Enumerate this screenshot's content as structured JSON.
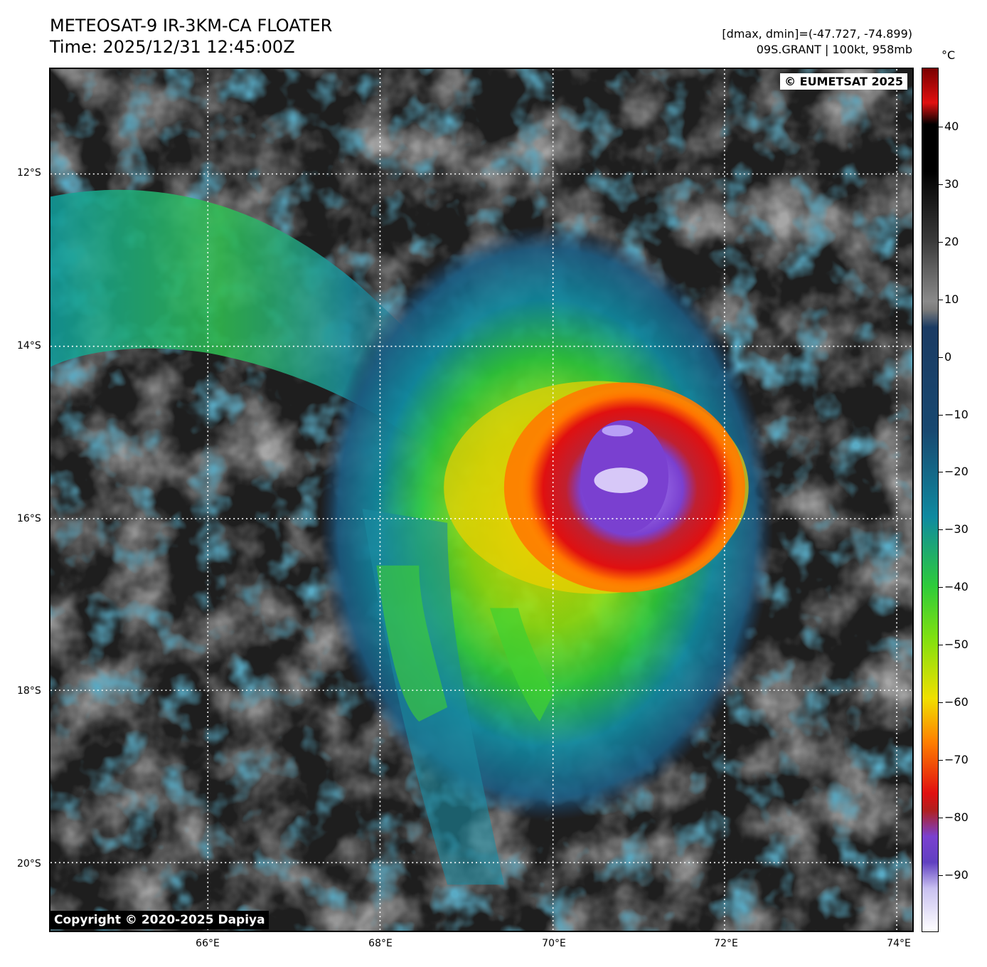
{
  "header": {
    "title_line1": "METEOSAT-9 IR-3KM-CA FLOATER",
    "title_line2": "Time: 2025/12/31 12:45:00Z",
    "range_info": "[dmax, dmin]=(-47.727, -74.899)",
    "storm_info": "09S.GRANT | 100kt, 958mb"
  },
  "credits": {
    "eumetsat": "© EUMETSAT 2025",
    "dapiya": "Copyright © 2020-2025 Dapiya"
  },
  "axes": {
    "lat_labels": [
      "12°S",
      "14°S",
      "16°S",
      "18°S",
      "20°S"
    ],
    "lon_labels": [
      "66°E",
      "68°E",
      "70°E",
      "72°E",
      "74°E"
    ]
  },
  "colorbar": {
    "unit": "°C",
    "ticks": [
      "40",
      "30",
      "20",
      "10",
      "0",
      "−10",
      "−20",
      "−30",
      "−40",
      "−50",
      "−60",
      "−70",
      "−80",
      "−90"
    ],
    "colors": {
      "warm_top": "#7a0000",
      "black": "#000000",
      "gray": "#8a8a8a",
      "blue_dark": "#1b3b63",
      "teal": "#0f8aa0",
      "green": "#2ecc3a",
      "yellow": "#f0e000",
      "orange": "#ff8000",
      "red": "#e01010",
      "purple": "#7a40d0",
      "white": "#ffffff"
    }
  }
}
